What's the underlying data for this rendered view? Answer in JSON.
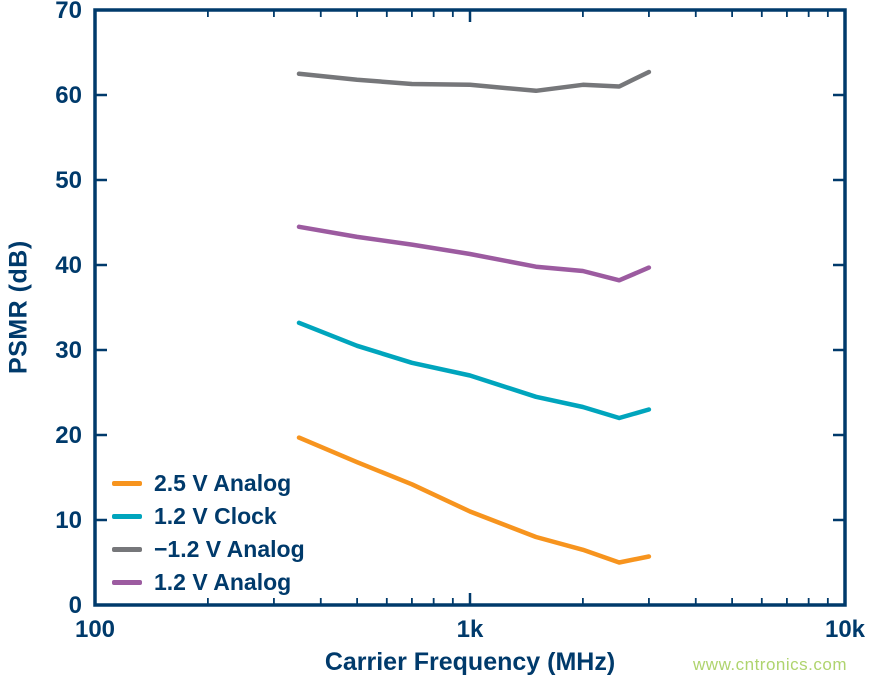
{
  "watermark": "www.cntronics.com",
  "colors": {
    "axis_text": "#003A6B",
    "plot_border": "#003A6B",
    "watermark": "#AFD46E"
  },
  "chart_data": {
    "type": "line",
    "title": "",
    "xlabel": "Carrier Frequency (MHz)",
    "ylabel": "PSMR (dB)",
    "x_scale": "log",
    "xlim": [
      100,
      10000
    ],
    "ylim": [
      0,
      70
    ],
    "y_tick_step": 10,
    "x_ticks": [
      {
        "value": 100,
        "label": "100"
      },
      {
        "value": 1000,
        "label": "1k"
      },
      {
        "value": 10000,
        "label": "10k"
      }
    ],
    "grid": false,
    "legend_position": "lower-left",
    "x": [
      350,
      500,
      700,
      1000,
      1500,
      2000,
      2500,
      3000
    ],
    "series": [
      {
        "name": "2.5 V Analog",
        "color": "#F7941E",
        "values": [
          19.7,
          16.8,
          14.2,
          11.0,
          8.0,
          6.5,
          5.0,
          5.7
        ]
      },
      {
        "name": "1.2 V Clock",
        "color": "#00A5BD",
        "values": [
          33.2,
          30.5,
          28.5,
          27.0,
          24.5,
          23.3,
          22.0,
          23.0
        ]
      },
      {
        "name": "−1.2 V Analog",
        "color": "#76777A",
        "values": [
          62.5,
          61.8,
          61.3,
          61.2,
          60.5,
          61.2,
          61.0,
          62.7
        ]
      },
      {
        "name": "1.2 V Analog",
        "color": "#9C5BA0",
        "values": [
          44.5,
          43.3,
          42.4,
          41.3,
          39.8,
          39.3,
          38.2,
          39.7
        ]
      }
    ]
  }
}
